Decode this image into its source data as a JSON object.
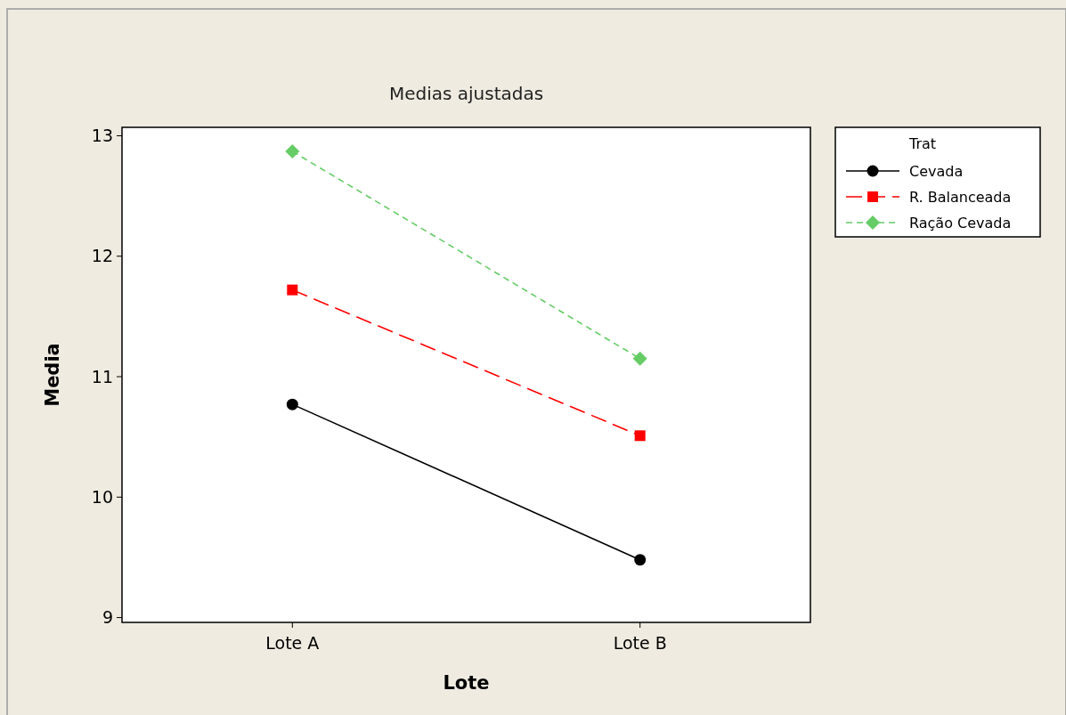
{
  "chart_data": {
    "type": "line",
    "title": "Medias ajustadas",
    "xlabel": "Lote",
    "ylabel": "Media",
    "legend_title": "Trat",
    "categories": [
      "Lote A",
      "Lote B"
    ],
    "series": [
      {
        "name": "Cevada",
        "color": "#000000",
        "values": [
          10.77,
          9.48
        ],
        "marker": "circle",
        "line_style": "solid"
      },
      {
        "name": "R. Balanceada",
        "color": "#ff0000",
        "values": [
          11.72,
          10.51
        ],
        "marker": "square",
        "line_style": "dashed"
      },
      {
        "name": "Ração Cevada",
        "color": "#66cc66",
        "values": [
          12.87,
          11.15
        ],
        "marker": "diamond",
        "line_style": "dotted"
      }
    ],
    "ylim": [
      8.96,
      13.07
    ],
    "yticks": [
      9,
      10,
      11,
      12,
      13
    ],
    "grid": false,
    "legend": "top right"
  }
}
